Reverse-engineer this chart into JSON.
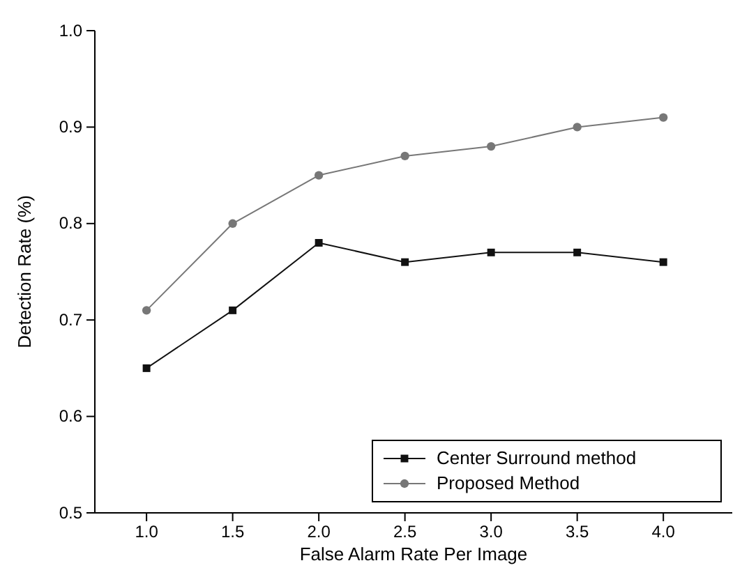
{
  "chart_data": {
    "type": "line",
    "xlabel": "False Alarm Rate Per Image",
    "ylabel": "Detection Rate (%)",
    "x": [
      1.0,
      1.5,
      2.0,
      2.5,
      3.0,
      3.5,
      4.0
    ],
    "xlim": [
      0.7,
      4.4
    ],
    "xticks": [
      {
        "value": 1,
        "label": "1.0"
      },
      {
        "value": 1.5,
        "label": "1.5"
      },
      {
        "value": 2,
        "label": "2.0"
      },
      {
        "value": 2.5,
        "label": "2.5"
      },
      {
        "value": 3,
        "label": "3.0"
      },
      {
        "value": 3.5,
        "label": "3.5"
      },
      {
        "value": 4,
        "label": "4.0"
      }
    ],
    "ylim": [
      0.5,
      1.0
    ],
    "yticks": [
      {
        "value": 0.5,
        "label": "0.5"
      },
      {
        "value": 0.6,
        "label": "0.6"
      },
      {
        "value": 0.7,
        "label": "0.7"
      },
      {
        "value": 0.8,
        "label": "0.8"
      },
      {
        "value": 0.9,
        "label": "0.9"
      },
      {
        "value": 1.0,
        "label": "1.0"
      }
    ],
    "legend": "bottom right",
    "grid": false,
    "series": [
      {
        "name": "Center Surround method",
        "color": "#111111",
        "marker": "square",
        "values": [
          0.65,
          0.71,
          0.78,
          0.76,
          0.77,
          0.77,
          0.76
        ]
      },
      {
        "name": "Proposed Method",
        "color": "#777777",
        "marker": "circle",
        "values": [
          0.71,
          0.8,
          0.85,
          0.87,
          0.88,
          0.9,
          0.91
        ]
      }
    ]
  }
}
